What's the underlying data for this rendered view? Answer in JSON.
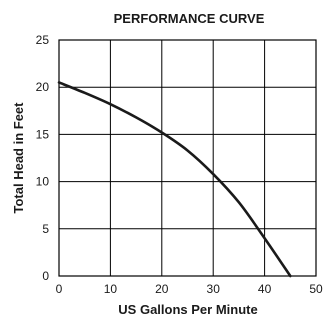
{
  "chart_data": {
    "type": "line",
    "title": "PERFORMANCE CURVE",
    "xlabel": "US Gallons Per Minute",
    "ylabel": "Total Head in Feet",
    "xlim": [
      0,
      50
    ],
    "ylim": [
      0,
      25
    ],
    "x_ticks": [
      "0",
      "10",
      "20",
      "30",
      "40",
      "50"
    ],
    "y_ticks": [
      "0",
      "5",
      "10",
      "15",
      "20",
      "25"
    ],
    "grid": true,
    "series": [
      {
        "x": [
          0,
          5,
          10,
          15,
          20,
          25,
          30,
          35,
          40,
          45
        ],
        "y": [
          20.5,
          19.4,
          18.2,
          16.8,
          15.2,
          13.3,
          10.8,
          7.8,
          4.0,
          0
        ]
      }
    ],
    "colors": {
      "line": "#1a1a1a",
      "grid": "#000000",
      "axis": "#000000"
    }
  }
}
